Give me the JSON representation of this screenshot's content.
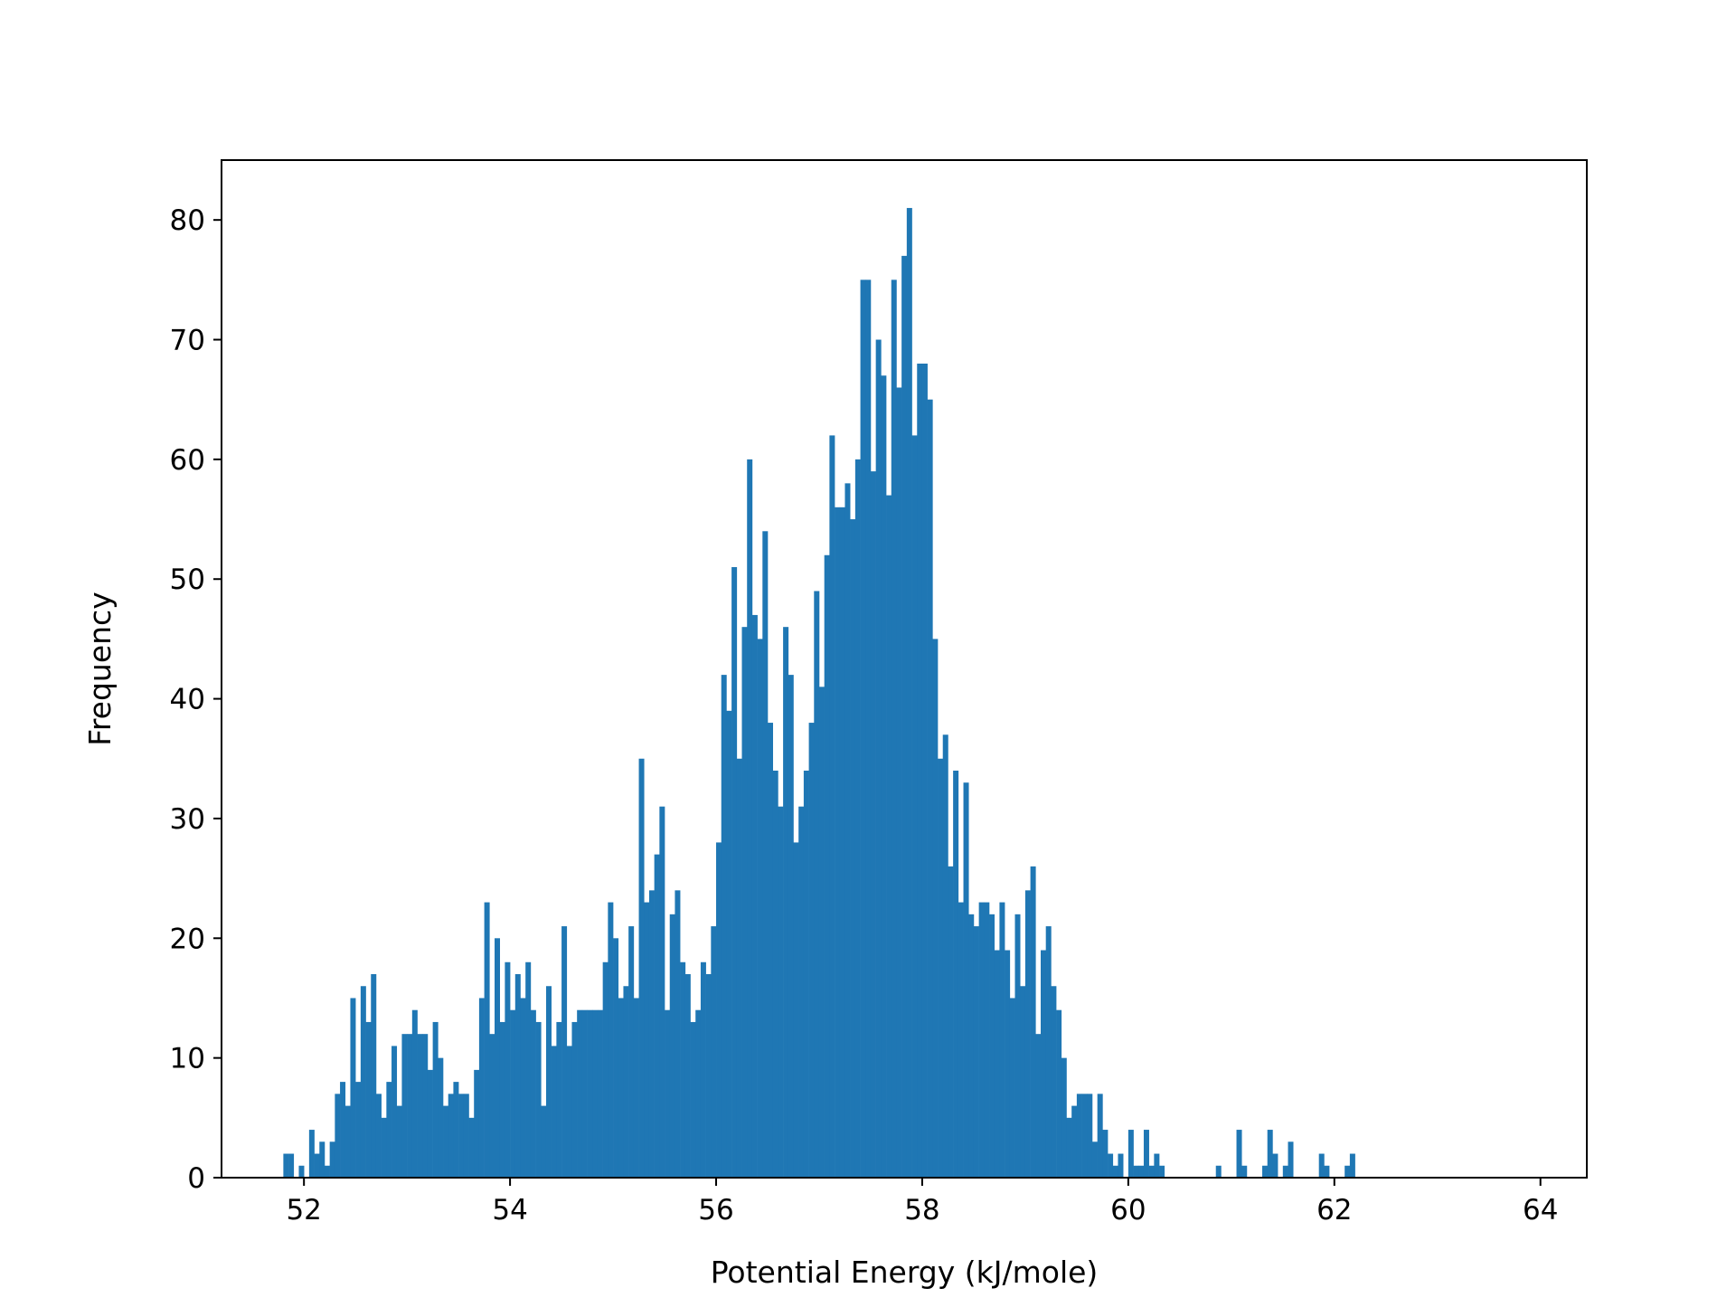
{
  "chart_data": {
    "type": "bar",
    "title": "",
    "xlabel": "Potential Energy (kJ/mole)",
    "ylabel": "Frequency",
    "xlim": [
      51.2,
      64.45
    ],
    "ylim": [
      0,
      85
    ],
    "xticks": [
      52,
      54,
      56,
      58,
      60,
      62,
      64
    ],
    "yticks": [
      0,
      10,
      20,
      30,
      40,
      50,
      60,
      70,
      80
    ],
    "grid": false,
    "legend": "none",
    "color": "#1f77b4",
    "bin_start": 51.8,
    "bin_width": 0.05,
    "values": [
      2,
      2,
      0,
      1,
      0,
      4,
      2,
      3,
      1,
      3,
      7,
      8,
      6,
      15,
      8,
      16,
      13,
      17,
      7,
      5,
      8,
      11,
      6,
      12,
      12,
      14,
      12,
      12,
      9,
      13,
      10,
      6,
      7,
      8,
      7,
      7,
      5,
      9,
      15,
      23,
      12,
      20,
      13,
      18,
      14,
      17,
      15,
      18,
      14,
      13,
      6,
      16,
      11,
      13,
      21,
      11,
      13,
      14,
      14,
      14,
      14,
      14,
      18,
      23,
      20,
      15,
      16,
      21,
      15,
      35,
      23,
      24,
      27,
      31,
      14,
      22,
      24,
      18,
      17,
      13,
      14,
      18,
      17,
      21,
      28,
      42,
      39,
      51,
      35,
      46,
      60,
      47,
      45,
      54,
      38,
      34,
      31,
      46,
      42,
      28,
      31,
      34,
      38,
      49,
      41,
      52,
      62,
      56,
      56,
      58,
      55,
      60,
      75,
      75,
      59,
      70,
      67,
      57,
      75,
      66,
      77,
      81,
      62,
      68,
      68,
      65,
      45,
      35,
      37,
      26,
      34,
      23,
      33,
      22,
      21,
      23,
      23,
      22,
      19,
      23,
      19,
      15,
      22,
      16,
      24,
      26,
      12,
      19,
      21,
      16,
      14,
      10,
      5,
      6,
      7,
      7,
      7,
      3,
      7,
      4,
      2,
      1,
      2,
      0,
      4,
      1,
      1,
      4,
      1,
      2,
      1,
      0,
      0,
      0,
      0,
      0,
      0,
      0,
      0,
      0,
      0,
      1,
      0,
      0,
      0,
      4,
      1,
      0,
      0,
      0,
      1,
      4,
      2,
      0,
      1,
      3,
      0,
      0,
      0,
      0,
      0,
      2,
      1,
      0,
      0,
      0,
      1,
      2
    ]
  }
}
